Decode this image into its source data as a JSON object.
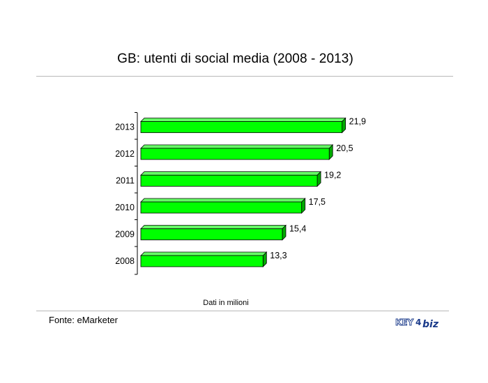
{
  "chart_data": {
    "type": "bar",
    "orientation": "horizontal",
    "title": "GB: utenti di social media (2008 - 2013)",
    "categories": [
      "2008",
      "2009",
      "2010",
      "2011",
      "2012",
      "2013"
    ],
    "values": [
      13.3,
      15.4,
      17.5,
      19.2,
      20.5,
      21.9
    ],
    "value_labels": [
      "13,3",
      "15,4",
      "17,5",
      "19,2",
      "20,5",
      "21,9"
    ],
    "xlim": [
      0,
      22.5
    ],
    "grid": false,
    "bar_color": "#00ff00",
    "bar_edge_color": "#000000",
    "caption": "Dati in milioni"
  },
  "footer": {
    "source": "Fonte: eMarketer",
    "logo_text_left": "KEY",
    "logo_text_mid": "4",
    "logo_text_right": "biz"
  },
  "colors": {
    "bar_front": "#00ff00",
    "bar_top": "#66ff66",
    "bar_side": "#00aa00",
    "rule": "#b8b8b8",
    "logo_blue": "#1a3a8a",
    "logo_gray": "#8a94a6"
  }
}
